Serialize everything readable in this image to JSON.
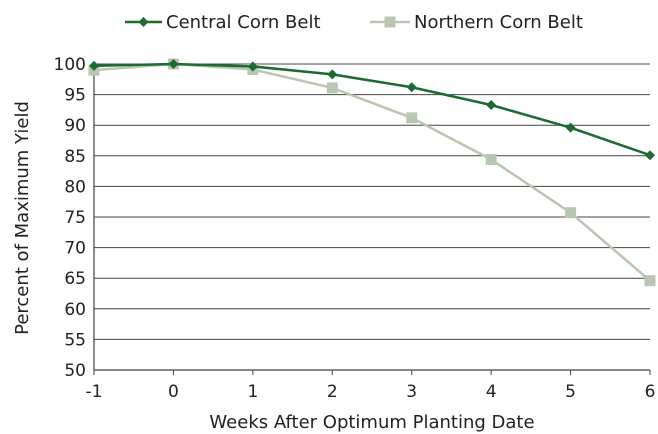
{
  "chart_data": {
    "type": "line",
    "title": "",
    "xlabel": "Weeks After Optimum Planting Date",
    "ylabel": "Percent of Maximum Yield",
    "x": [
      -1,
      0,
      1,
      2,
      3,
      4,
      5,
      6
    ],
    "xlim": [
      -1,
      6
    ],
    "ylim": [
      50,
      100
    ],
    "y_ticks": [
      50,
      55,
      60,
      65,
      70,
      75,
      80,
      85,
      90,
      95,
      100
    ],
    "grid": "horizontal",
    "legend_position": "top",
    "series": [
      {
        "name": "Central Corn Belt",
        "color": "#1d6b32",
        "marker": "diamond",
        "values": [
          99.7,
          100,
          99.6,
          98.3,
          96.2,
          93.3,
          89.6,
          85.1
        ]
      },
      {
        "name": "Northern Corn Belt",
        "color": "#b9c7b2",
        "marker": "square",
        "values": [
          99.0,
          100,
          99.1,
          96.1,
          91.2,
          84.4,
          75.7,
          64.6
        ]
      }
    ]
  }
}
